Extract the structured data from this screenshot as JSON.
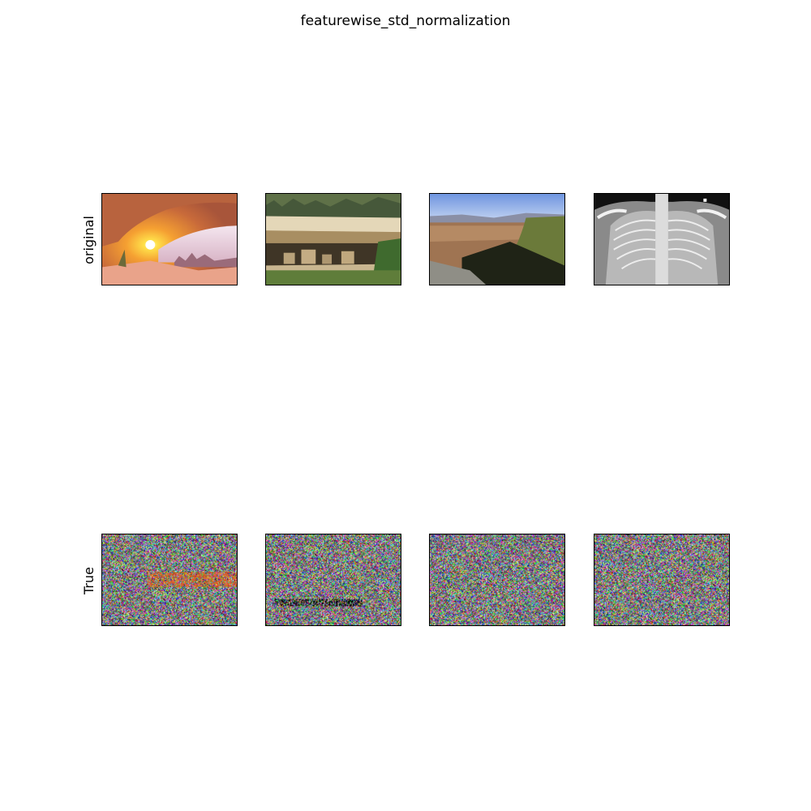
{
  "figure": {
    "title": "featurewise_std_normalization",
    "rows": [
      {
        "label": "original",
        "panels": [
          {
            "content": "arch-sunburst-icon"
          },
          {
            "content": "cliff-dwelling-icon"
          },
          {
            "content": "canyon-overlook-icon"
          },
          {
            "content": "chest-xray-icon"
          }
        ]
      },
      {
        "label": "True",
        "panels": [
          {
            "content": "noise-image-icon"
          },
          {
            "content": "noise-image-icon"
          },
          {
            "content": "noise-image-icon"
          },
          {
            "content": "noise-image-icon"
          }
        ]
      }
    ]
  }
}
